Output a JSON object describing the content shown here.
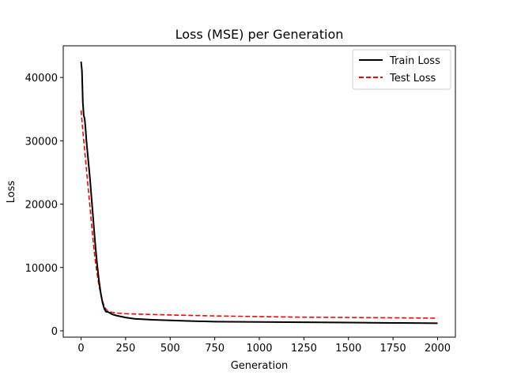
{
  "chart_data": {
    "type": "line",
    "title": "Loss (MSE) per Generation",
    "xlabel": "Generation",
    "ylabel": "Loss",
    "xlim": [
      -100,
      2100
    ],
    "ylim": [
      -1000,
      45000
    ],
    "xticks": [
      0,
      250,
      500,
      750,
      1000,
      1250,
      1500,
      1750,
      2000
    ],
    "yticks": [
      0,
      10000,
      20000,
      30000,
      40000
    ],
    "legend_position": "top-right",
    "grid": false,
    "series": [
      {
        "name": "Train Loss",
        "color": "#000000",
        "style": "solid",
        "x": [
          0,
          5,
          10,
          15,
          20,
          25,
          30,
          40,
          50,
          60,
          70,
          80,
          90,
          100,
          110,
          120,
          130,
          140,
          150,
          175,
          200,
          250,
          300,
          400,
          500,
          600,
          750,
          1000,
          1250,
          1500,
          1750,
          2000
        ],
        "y": [
          42500,
          41000,
          36000,
          34000,
          33500,
          32000,
          30000,
          27000,
          24000,
          20500,
          17000,
          13500,
          10500,
          8000,
          6000,
          4500,
          3500,
          3000,
          3000,
          2600,
          2400,
          2100,
          1900,
          1750,
          1650,
          1550,
          1450,
          1400,
          1350,
          1300,
          1250,
          1200
        ]
      },
      {
        "name": "Test Loss",
        "color": "#ff0000",
        "style": "dashed",
        "x": [
          0,
          10,
          20,
          30,
          40,
          50,
          60,
          70,
          80,
          90,
          100,
          110,
          120,
          130,
          140,
          150,
          175,
          200,
          250,
          300,
          500,
          750,
          1000,
          1250,
          1500,
          1750,
          2000
        ],
        "y": [
          34800,
          31500,
          28500,
          25500,
          22500,
          19500,
          16500,
          13500,
          11000,
          9000,
          7200,
          5800,
          4700,
          3900,
          3400,
          3100,
          2900,
          2800,
          2700,
          2650,
          2500,
          2350,
          2250,
          2150,
          2100,
          2050,
          2000
        ]
      }
    ]
  }
}
